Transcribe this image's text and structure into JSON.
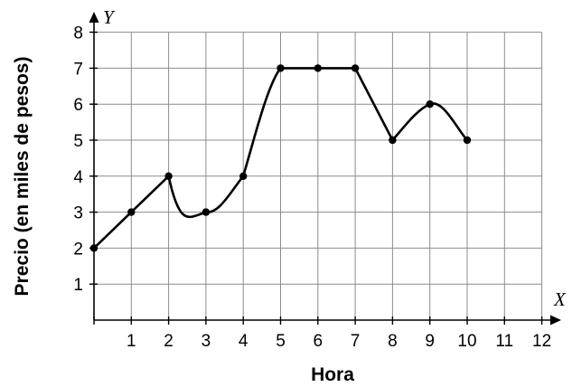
{
  "chart_data": {
    "type": "line",
    "title": "",
    "xlabel": "Hora",
    "ylabel": "Precio (en miles de pesos)",
    "x_axis_letter": "X",
    "y_axis_letter": "Y",
    "xlim": [
      0,
      12
    ],
    "ylim": [
      0,
      8
    ],
    "x_ticks": [
      1,
      2,
      3,
      4,
      5,
      6,
      7,
      8,
      9,
      10,
      11,
      12
    ],
    "y_ticks": [
      1,
      2,
      3,
      4,
      5,
      6,
      7,
      8
    ],
    "x_tick_labels": [
      "1",
      "2",
      "3",
      "4",
      "5",
      "6",
      "7",
      "8",
      "9",
      "10",
      "11",
      "12"
    ],
    "y_tick_labels": [
      "1",
      "2",
      "3",
      "4",
      "5",
      "6",
      "7",
      "8"
    ],
    "grid": true,
    "series": [
      {
        "points": [
          {
            "x": 0,
            "y": 2
          },
          {
            "x": 1,
            "y": 3
          },
          {
            "x": 2,
            "y": 4
          },
          {
            "x": 3,
            "y": 3
          },
          {
            "x": 4,
            "y": 4
          },
          {
            "x": 5,
            "y": 7
          },
          {
            "x": 6,
            "y": 7
          },
          {
            "x": 7,
            "y": 7
          },
          {
            "x": 8,
            "y": 5
          },
          {
            "x": 9,
            "y": 6
          },
          {
            "x": 10,
            "y": 5
          }
        ],
        "segments": [
          {
            "from": 0,
            "to": 1,
            "shape": "straight"
          },
          {
            "from": 1,
            "to": 2,
            "shape": "straight"
          },
          {
            "from": 2,
            "to": 3,
            "shape": "curve-down"
          },
          {
            "from": 3,
            "to": 4,
            "shape": "curve-down"
          },
          {
            "from": 4,
            "to": 5,
            "shape": "curve-up"
          },
          {
            "from": 5,
            "to": 6,
            "shape": "straight"
          },
          {
            "from": 6,
            "to": 7,
            "shape": "straight"
          },
          {
            "from": 7,
            "to": 8,
            "shape": "straight"
          },
          {
            "from": 8,
            "to": 9,
            "shape": "curve-up"
          },
          {
            "from": 9,
            "to": 10,
            "shape": "curve-up"
          }
        ]
      }
    ]
  }
}
